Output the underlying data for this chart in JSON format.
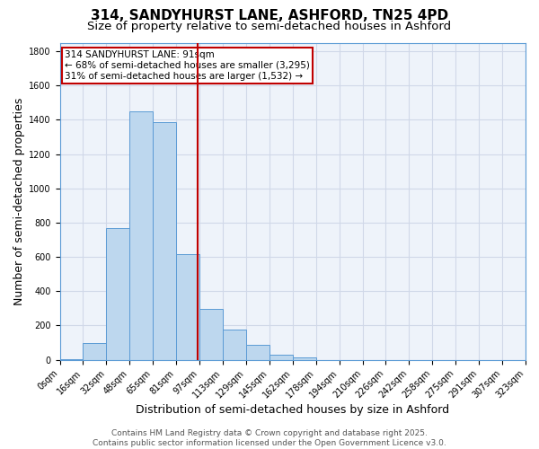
{
  "title_line1": "314, SANDYHURST LANE, ASHFORD, TN25 4PD",
  "title_line2": "Size of property relative to semi-detached houses in Ashford",
  "xlabel": "Distribution of semi-detached houses by size in Ashford",
  "ylabel": "Number of semi-detached properties",
  "bin_labels": [
    "0sqm",
    "16sqm",
    "32sqm",
    "48sqm",
    "65sqm",
    "81sqm",
    "97sqm",
    "113sqm",
    "129sqm",
    "145sqm",
    "162sqm",
    "178sqm",
    "194sqm",
    "210sqm",
    "226sqm",
    "242sqm",
    "258sqm",
    "275sqm",
    "291sqm",
    "307sqm",
    "323sqm"
  ],
  "bar_heights": [
    5,
    95,
    770,
    1450,
    1385,
    615,
    295,
    175,
    85,
    30,
    12,
    0,
    0,
    0,
    0,
    0,
    0,
    0,
    0,
    0
  ],
  "bar_color": "#bdd7ee",
  "bar_edgecolor": "#5b9bd5",
  "vline_bin_index": 5.9375,
  "vline_color": "#c00000",
  "annotation_text": "314 SANDYHURST LANE: 91sqm\n← 68% of semi-detached houses are smaller (3,295)\n31% of semi-detached houses are larger (1,532) →",
  "annotation_box_edgecolor": "#c00000",
  "annotation_box_facecolor": "white",
  "ylim": [
    0,
    1850
  ],
  "yticks": [
    0,
    200,
    400,
    600,
    800,
    1000,
    1200,
    1400,
    1600,
    1800
  ],
  "grid_color": "#d0d8e8",
  "background_color": "#eef3fa",
  "footer_text": "Contains HM Land Registry data © Crown copyright and database right 2025.\nContains public sector information licensed under the Open Government Licence v3.0.",
  "title_fontsize": 11,
  "subtitle_fontsize": 9.5,
  "axis_label_fontsize": 9,
  "tick_fontsize": 7,
  "annotation_fontsize": 7.5,
  "footer_fontsize": 6.5
}
